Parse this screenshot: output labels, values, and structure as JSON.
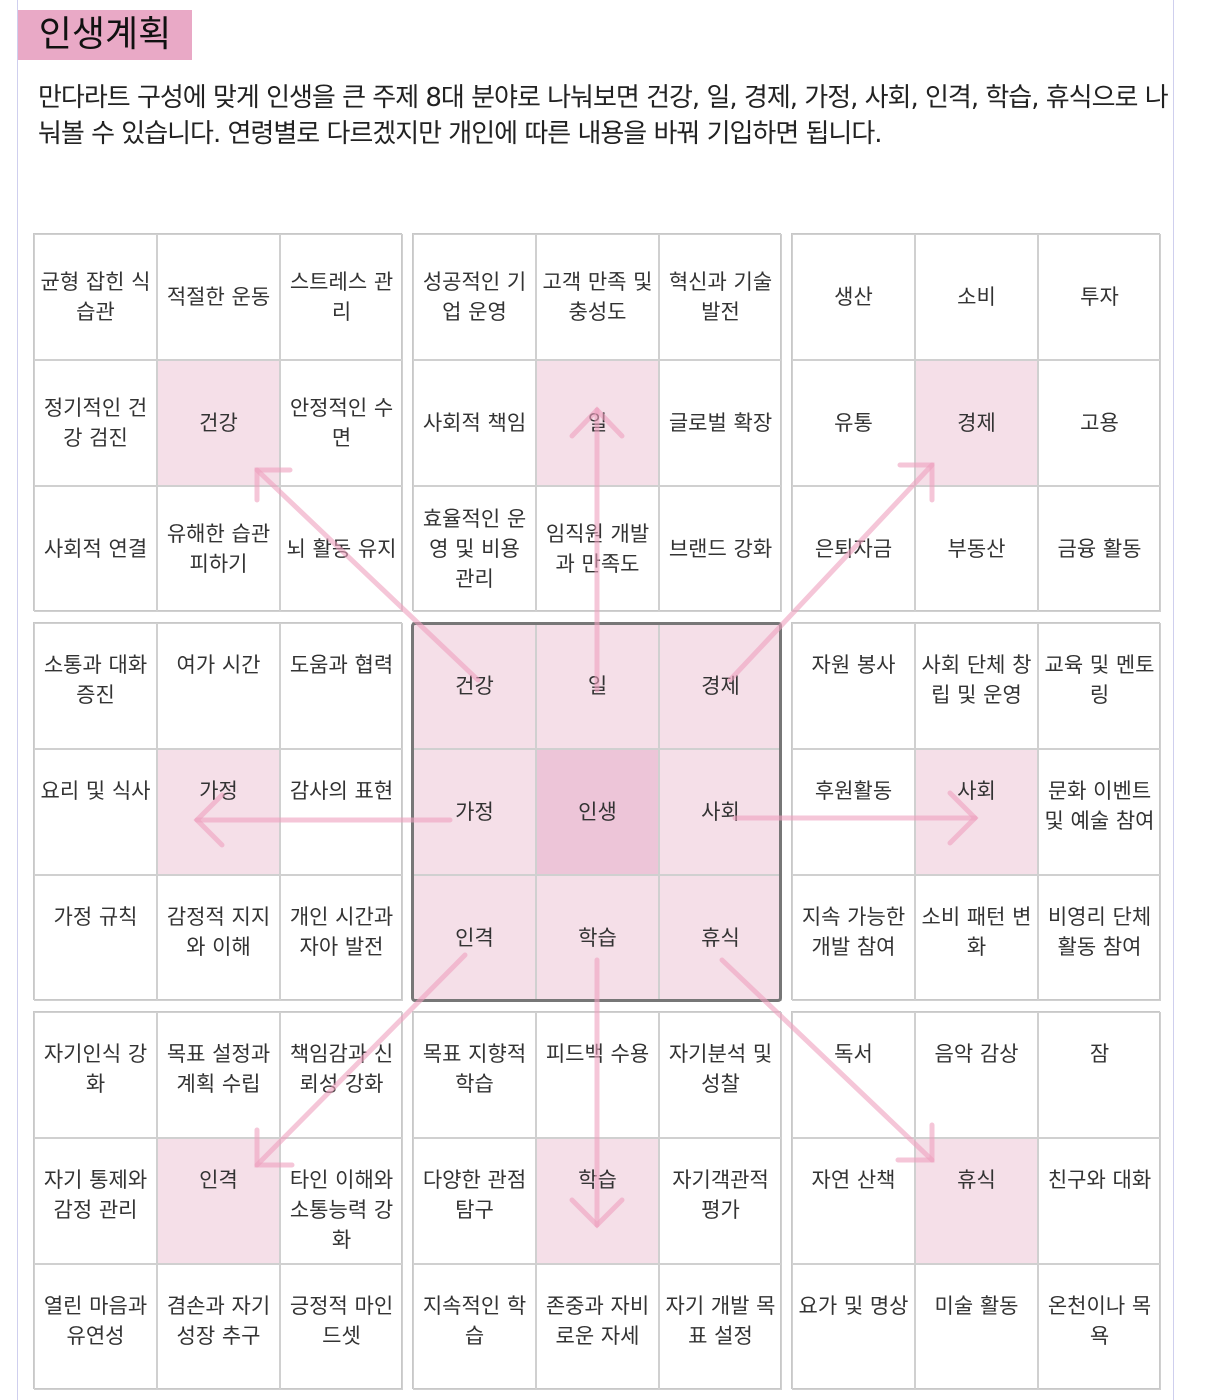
{
  "header": {
    "title": "인생계획",
    "description": "만다라트 구성에 맞게 인생을 큰 주제 8대 분야로 나눠보면 건강, 일, 경제, 가정, 사회, 인격, 학습, 휴식으로 나눠볼 수 있습니다. 연령별로 다르겠지만 개인에 따른 내용을 바꿔 기입하면 됩니다."
  },
  "blocks": [
    {
      "cells": [
        "균형 잡힌 식습관",
        "적절한 운동",
        "스트레스 관리",
        "정기적인 건강 검진",
        "건강",
        "안정적인 수면",
        "사회적 연결",
        "유해한 습관 피하기",
        "뇌 활동 유지"
      ]
    },
    {
      "cells": [
        "성공적인 기업 운영",
        "고객 만족 및 충성도",
        "혁신과 기술 발전",
        "사회적 책임",
        "일",
        "글로벌 확장",
        "효율적인 운영 및 비용 관리",
        "임직원 개발과 만족도",
        "브랜드 강화"
      ]
    },
    {
      "cells": [
        "생산",
        "소비",
        "투자",
        "유통",
        "경제",
        "고용",
        "은퇴자금",
        "부동산",
        "금융 활동"
      ]
    },
    {
      "cells": [
        "소통과 대화 증진",
        "여가 시간",
        "도움과 협력",
        "요리 및 식사",
        "가정",
        "감사의 표현",
        "가정 규칙",
        "감정적 지지와 이해",
        "개인 시간과 자아 발전"
      ]
    },
    {
      "cells": [
        "건강",
        "일",
        "경제",
        "가정",
        "인생",
        "사회",
        "인격",
        "학습",
        "휴식"
      ]
    },
    {
      "cells": [
        "자원 봉사",
        "사회 단체 창립 및 운영",
        "교육 및 멘토링",
        "후원활동",
        "사회",
        "문화 이벤트 및 예술 참여",
        "지속 가능한 개발 참여",
        "소비 패턴 변화",
        "비영리 단체 활동 참여"
      ]
    },
    {
      "cells": [
        "자기인식 강화",
        "목표 설정과 계획 수립",
        "책임감과 신뢰성 강화",
        "자기 통제와 감정 관리",
        "인격",
        "타인 이해와 소통능력 강화",
        "열린 마음과 유연성",
        "겸손과 자기 성장 추구",
        "긍정적 마인드셋"
      ]
    },
    {
      "cells": [
        "목표 지향적 학습",
        "피드백 수용",
        "자기분석 및 성찰",
        "다양한 관점 탐구",
        "학습",
        "자기객관적 평가",
        "지속적인 학습",
        "존중과 자비로운 자세",
        "자기 개발 목표 설정"
      ]
    },
    {
      "cells": [
        "독서",
        "음악 감상",
        "잠",
        "자연 산책",
        "휴식",
        "친구와 대화",
        "요가 및 명상",
        "미술 활동",
        "온천이나 목욕"
      ]
    }
  ]
}
